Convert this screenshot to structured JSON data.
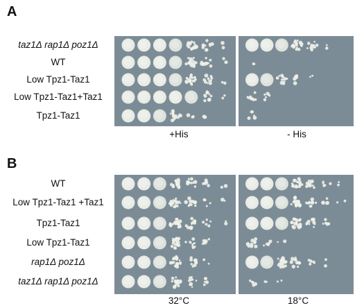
{
  "panelA": {
    "letter": "A",
    "rows": [
      {
        "label": "taz1Δ rap1Δ poz1Δ",
        "italic": true
      },
      {
        "label": "WT",
        "italic": false
      },
      {
        "label": "Low Tpz1-Taz1",
        "italic": false
      },
      {
        "label": "Low Tpz1-Taz1+Taz1",
        "italic": false
      },
      {
        "label": "Tpz1-Taz1",
        "italic": false
      }
    ],
    "conditions": [
      "+His",
      "- His"
    ],
    "growth": [
      [
        [
          6,
          6,
          6,
          5,
          4,
          3,
          1
        ],
        [
          6,
          6,
          5,
          4,
          3,
          1,
          0
        ]
      ],
      [
        [
          6,
          6,
          6,
          5,
          4,
          3,
          1
        ],
        [
          1,
          0,
          0,
          0,
          0,
          0,
          0
        ]
      ],
      [
        [
          6,
          6,
          6,
          5,
          4,
          3,
          1
        ],
        [
          6,
          5,
          3,
          2,
          1,
          0,
          0
        ]
      ],
      [
        [
          6,
          6,
          6,
          6,
          5,
          3,
          1
        ],
        [
          3,
          2,
          0,
          0,
          0,
          0,
          0
        ]
      ],
      [
        [
          6,
          6,
          5,
          4,
          2,
          1,
          0
        ],
        [
          2,
          0,
          0,
          0,
          0,
          0,
          0
        ]
      ]
    ]
  },
  "panelB": {
    "letter": "B",
    "rows": [
      {
        "label": "WT",
        "italic": false
      },
      {
        "label": "Low Tpz1-Taz1 +Taz1",
        "italic": false
      },
      {
        "label": "Tpz1-Taz1",
        "italic": false
      },
      {
        "label": "Low Tpz1-Taz1",
        "italic": false
      },
      {
        "label": "rap1Δ poz1Δ",
        "italic": true
      },
      {
        "label": "taz1Δ rap1Δ poz1Δ",
        "italic": true
      }
    ],
    "conditions": [
      "32°C",
      "18°C"
    ],
    "growth": [
      [
        [
          6,
          6,
          5,
          4,
          3,
          2,
          1
        ],
        [
          6,
          6,
          5,
          4,
          3,
          2,
          1
        ]
      ],
      [
        [
          6,
          6,
          5,
          4,
          3,
          2,
          1
        ],
        [
          6,
          6,
          5,
          4,
          3,
          2,
          1
        ]
      ],
      [
        [
          6,
          6,
          5,
          4,
          3,
          2,
          1
        ],
        [
          6,
          6,
          5,
          4,
          3,
          2,
          0
        ]
      ],
      [
        [
          6,
          6,
          5,
          4,
          3,
          2,
          0
        ],
        [
          3,
          2,
          1,
          0,
          0,
          0,
          0
        ]
      ],
      [
        [
          6,
          6,
          5,
          4,
          3,
          1,
          0
        ],
        [
          6,
          5,
          4,
          3,
          2,
          1,
          0
        ]
      ],
      [
        [
          6,
          6,
          5,
          4,
          3,
          2,
          0
        ],
        [
          2,
          1,
          1,
          0,
          0,
          0,
          0
        ]
      ]
    ]
  },
  "colors": {
    "plate": "#7c8c97",
    "colony": "#eef1e8"
  }
}
